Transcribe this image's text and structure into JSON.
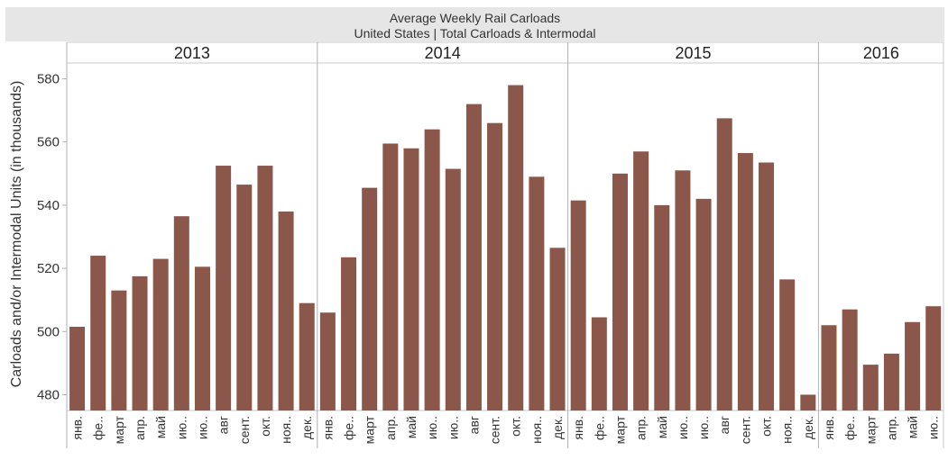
{
  "chart_data": {
    "type": "bar",
    "title": "Average Weekly Rail Carloads",
    "subtitle": "United States | Total Carloads & Intermodal",
    "ylabel": "Carloads and/or Intermodal Units (in thousands)",
    "ylim": [
      475,
      585
    ],
    "yticks": [
      480,
      500,
      520,
      540,
      560,
      580
    ],
    "bar_color": "#8b574b",
    "grid": false,
    "panels": [
      {
        "year": "2013",
        "categories": [
          "янв.",
          "фе..",
          "март",
          "апр.",
          "май",
          "ию..",
          "ию..",
          "авг",
          "сент.",
          "окт.",
          "ноя..",
          "дек."
        ],
        "values": [
          501.5,
          524,
          513,
          517.5,
          523,
          536.5,
          520.5,
          552.5,
          546.5,
          552.5,
          538,
          509
        ]
      },
      {
        "year": "2014",
        "categories": [
          "янв.",
          "фе..",
          "март",
          "апр.",
          "май",
          "ию..",
          "ию..",
          "авг",
          "сент.",
          "окт.",
          "ноя..",
          "дек."
        ],
        "values": [
          506,
          523.5,
          545.5,
          559.5,
          558,
          564,
          551.5,
          572,
          566,
          578,
          549,
          526.5
        ]
      },
      {
        "year": "2015",
        "categories": [
          "янв.",
          "фе..",
          "март",
          "апр.",
          "май",
          "ию..",
          "ию..",
          "авг",
          "сент.",
          "окт.",
          "ноя..",
          "дек."
        ],
        "values": [
          541.5,
          504.5,
          550,
          557,
          540,
          551,
          542,
          567.5,
          556.5,
          553.5,
          516.5,
          480
        ]
      },
      {
        "year": "2016",
        "categories": [
          "янв.",
          "фе..",
          "март",
          "апр.",
          "май",
          "ию.."
        ],
        "values": [
          502,
          507,
          489.5,
          493,
          503,
          508
        ]
      }
    ]
  }
}
